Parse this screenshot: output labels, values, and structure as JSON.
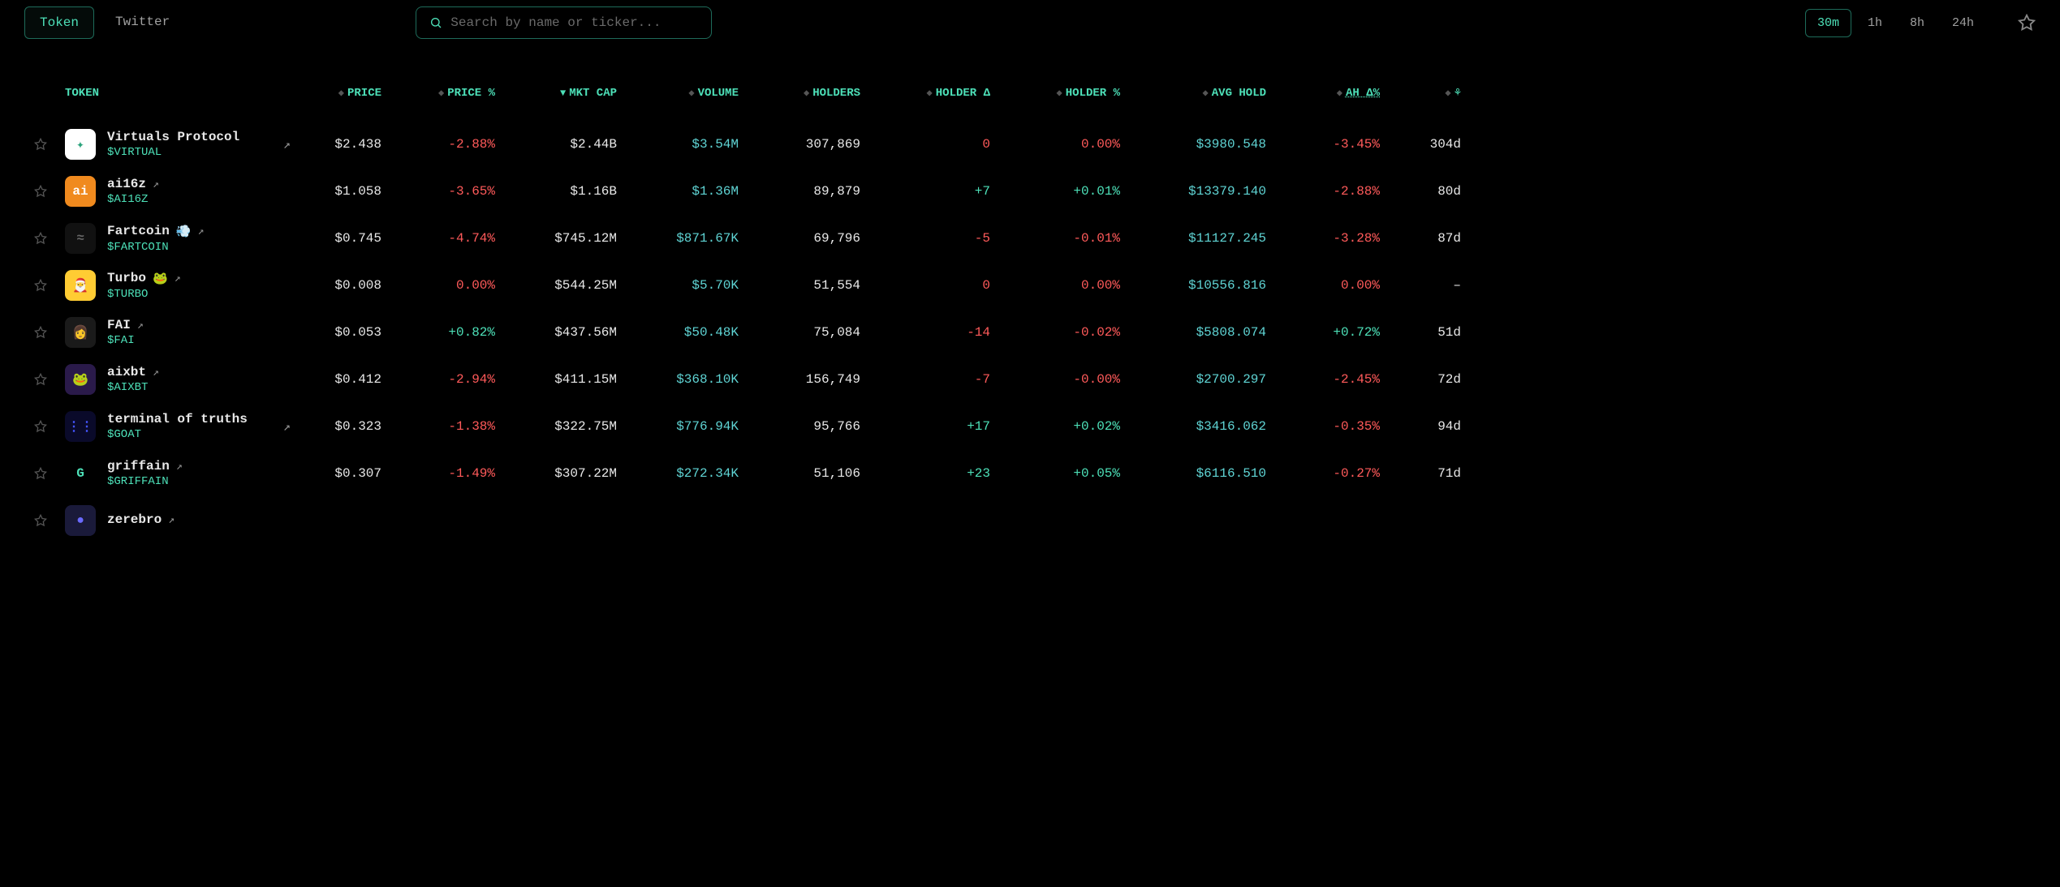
{
  "header": {
    "tabs": [
      {
        "label": "Token",
        "active": true
      },
      {
        "label": "Twitter",
        "active": false
      }
    ],
    "search_placeholder": "Search by name or ticker...",
    "time_filters": [
      {
        "label": "30m",
        "active": true
      },
      {
        "label": "1h",
        "active": false
      },
      {
        "label": "8h",
        "active": false
      },
      {
        "label": "24h",
        "active": false
      }
    ]
  },
  "columns": {
    "token": "TOKEN",
    "price": "PRICE",
    "price_pct": "PRICE %",
    "mkt_cap": "MKT CAP",
    "volume": "VOLUME",
    "holders": "HOLDERS",
    "holder_d": "HOLDER Δ",
    "holder_pct": "HOLDER %",
    "avg_hold": "AVG HOLD",
    "ah_d": "AH Δ%"
  },
  "rows": [
    {
      "name": "Virtuals Protocol",
      "ticker": "$VIRTUAL",
      "icon_bg": "#ffffff",
      "icon_glyph": "✦",
      "icon_fg": "#2aa37c",
      "price": "$2.438",
      "price_pct": "-2.88%",
      "price_pct_sign": "neg",
      "mkt_cap": "$2.44B",
      "volume": "$3.54M",
      "holders": "307,869",
      "holder_d": "0",
      "holder_d_sign": "neg",
      "holder_pct": "0.00%",
      "holder_pct_sign": "neg",
      "avg_hold": "$3980.548",
      "ah_d": "-3.45%",
      "ah_d_sign": "neg",
      "age": "304d",
      "has_outer_link": true
    },
    {
      "name": "ai16z",
      "ticker": "$AI16Z",
      "icon_bg": "#f08a1e",
      "icon_glyph": "ai",
      "icon_fg": "#ffffff",
      "price": "$1.058",
      "price_pct": "-3.65%",
      "price_pct_sign": "neg",
      "mkt_cap": "$1.16B",
      "volume": "$1.36M",
      "holders": "89,879",
      "holder_d": "+7",
      "holder_d_sign": "pos",
      "holder_pct": "+0.01%",
      "holder_pct_sign": "pos",
      "avg_hold": "$13379.140",
      "ah_d": "-2.88%",
      "ah_d_sign": "neg",
      "age": "80d",
      "inline_link": true
    },
    {
      "name": "Fartcoin",
      "emoji": "💨",
      "ticker": "$FARTCOIN",
      "icon_bg": "#111111",
      "icon_glyph": "≈",
      "icon_fg": "#666666",
      "price": "$0.745",
      "price_pct": "-4.74%",
      "price_pct_sign": "neg",
      "mkt_cap": "$745.12M",
      "volume": "$871.67K",
      "holders": "69,796",
      "holder_d": "-5",
      "holder_d_sign": "neg",
      "holder_pct": "-0.01%",
      "holder_pct_sign": "neg",
      "avg_hold": "$11127.245",
      "ah_d": "-3.28%",
      "ah_d_sign": "neg",
      "age": "87d",
      "inline_link": true
    },
    {
      "name": "Turbo",
      "emoji": "🐸",
      "ticker": "$TURBO",
      "icon_bg": "#ffcc33",
      "icon_glyph": "🎅",
      "icon_fg": "#000",
      "price": "$0.008",
      "price_pct": "0.00%",
      "price_pct_sign": "neg",
      "mkt_cap": "$544.25M",
      "volume": "$5.70K",
      "holders": "51,554",
      "holder_d": "0",
      "holder_d_sign": "neg",
      "holder_pct": "0.00%",
      "holder_pct_sign": "neg",
      "avg_hold": "$10556.816",
      "ah_d": "0.00%",
      "ah_d_sign": "neg",
      "age": "–",
      "inline_link": true
    },
    {
      "name": "FAI",
      "ticker": "$FAI",
      "icon_bg": "#1a1a1a",
      "icon_glyph": "👩",
      "icon_fg": "#3cff8a",
      "price": "$0.053",
      "price_pct": "+0.82%",
      "price_pct_sign": "pos",
      "mkt_cap": "$437.56M",
      "volume": "$50.48K",
      "holders": "75,084",
      "holder_d": "-14",
      "holder_d_sign": "neg",
      "holder_pct": "-0.02%",
      "holder_pct_sign": "neg",
      "avg_hold": "$5808.074",
      "ah_d": "+0.72%",
      "ah_d_sign": "pos",
      "age": "51d",
      "inline_link": true
    },
    {
      "name": "aixbt",
      "ticker": "$AIXBT",
      "icon_bg": "#2a1a4a",
      "icon_glyph": "🐸",
      "icon_fg": "#8a5aff",
      "price": "$0.412",
      "price_pct": "-2.94%",
      "price_pct_sign": "neg",
      "mkt_cap": "$411.15M",
      "volume": "$368.10K",
      "holders": "156,749",
      "holder_d": "-7",
      "holder_d_sign": "neg",
      "holder_pct": "-0.00%",
      "holder_pct_sign": "neg",
      "avg_hold": "$2700.297",
      "ah_d": "-2.45%",
      "ah_d_sign": "neg",
      "age": "72d",
      "inline_link": true
    },
    {
      "name": "terminal of truths",
      "ticker": "$GOAT",
      "icon_bg": "#0a0a2a",
      "icon_glyph": "⋮⋮",
      "icon_fg": "#4455ff",
      "price": "$0.323",
      "price_pct": "-1.38%",
      "price_pct_sign": "neg",
      "mkt_cap": "$322.75M",
      "volume": "$776.94K",
      "holders": "95,766",
      "holder_d": "+17",
      "holder_d_sign": "pos",
      "holder_pct": "+0.02%",
      "holder_pct_sign": "pos",
      "avg_hold": "$3416.062",
      "ah_d": "-0.35%",
      "ah_d_sign": "neg",
      "age": "94d",
      "has_outer_link": true
    },
    {
      "name": "griffain",
      "ticker": "$GRIFFAIN",
      "icon_bg": "#000000",
      "icon_glyph": "G",
      "icon_fg": "#4de0b8",
      "price": "$0.307",
      "price_pct": "-1.49%",
      "price_pct_sign": "neg",
      "mkt_cap": "$307.22M",
      "volume": "$272.34K",
      "holders": "51,106",
      "holder_d": "+23",
      "holder_d_sign": "pos",
      "holder_pct": "+0.05%",
      "holder_pct_sign": "pos",
      "avg_hold": "$6116.510",
      "ah_d": "-0.27%",
      "ah_d_sign": "neg",
      "age": "71d",
      "inline_link": true
    },
    {
      "name": "zerebro",
      "ticker": "",
      "icon_bg": "#1a1a3a",
      "icon_glyph": "●",
      "icon_fg": "#6a6aff",
      "price": "",
      "price_pct": "",
      "price_pct_sign": "neg",
      "mkt_cap": "",
      "volume": "",
      "holders": "",
      "holder_d": "",
      "holder_d_sign": "pos",
      "holder_pct": "",
      "holder_pct_sign": "pos",
      "avg_hold": "",
      "ah_d": "",
      "ah_d_sign": "neg",
      "age": "",
      "inline_link": true,
      "partial": true
    }
  ],
  "colors": {
    "bg": "#000000",
    "accent": "#4de0b8",
    "cyan": "#5fd4d4",
    "red": "#ff5a5a",
    "border": "#1e6b5a",
    "text": "#e8e8e8",
    "dim": "#888888"
  }
}
